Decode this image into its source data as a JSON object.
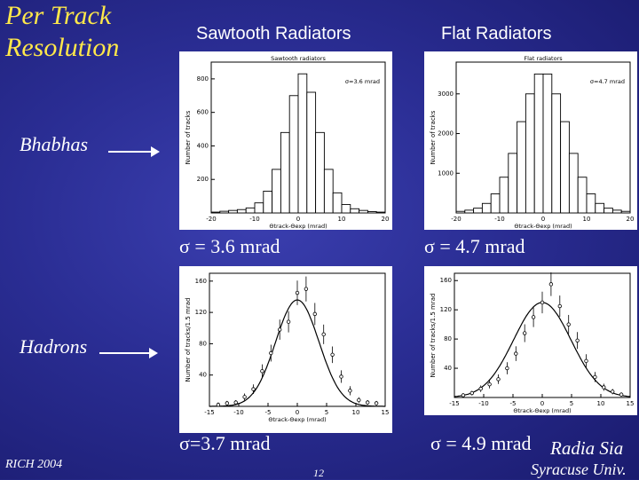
{
  "slide": {
    "title_line1": "Per Track",
    "title_line2": "Resolution",
    "col_sawtooth": "Sawtooth Radiators",
    "col_flat": "Flat Radiators",
    "row_bhabhas": "Bhabhas",
    "row_hadrons": "Hadrons",
    "sigma_saw_bhabha": "σ = 3.6 mrad",
    "sigma_flat_bhabha": "σ = 4.7 mrad",
    "sigma_saw_hadron": "σ=3.7 mrad",
    "sigma_flat_hadron": "σ = 4.9 mrad",
    "footer_left": "RICH 2004",
    "page_number": "12",
    "footer_right_1": "Radia Sia",
    "footer_right_2": "Syracuse Univ."
  },
  "chart_data": [
    {
      "type": "bar",
      "title": "Sawtooth radiators",
      "annotation": "σ=3.6 mrad",
      "xlabel": "Θtrack-Θexp (mrad)",
      "ylabel": "Number of tracks",
      "xlim": [
        -20,
        20
      ],
      "ylim": [
        0,
        900
      ],
      "x_ticks": [
        "-20",
        "-10",
        "0",
        "10",
        "20"
      ],
      "y_ticks": [
        "200",
        "400",
        "600",
        "800"
      ],
      "bin_edges": [
        -20,
        -18,
        -16,
        -14,
        -12,
        -10,
        -8,
        -6,
        -4,
        -2,
        0,
        2,
        4,
        6,
        8,
        10,
        12,
        14,
        16,
        18,
        20
      ],
      "values": [
        5,
        10,
        15,
        20,
        30,
        60,
        130,
        260,
        480,
        700,
        830,
        720,
        480,
        260,
        120,
        50,
        25,
        15,
        8,
        5
      ]
    },
    {
      "type": "bar",
      "title": "Flat radiators",
      "annotation": "σ=4.7 mrad",
      "xlabel": "Θtrack-Θexp (mrad)",
      "ylabel": "Number of tracks",
      "xlim": [
        -20,
        20
      ],
      "ylim": [
        0,
        3800
      ],
      "x_ticks": [
        "-20",
        "-10",
        "0",
        "10",
        "20"
      ],
      "y_ticks": [
        "1000",
        "2000",
        "3000"
      ],
      "bin_edges": [
        -20,
        -18,
        -16,
        -14,
        -12,
        -10,
        -8,
        -6,
        -4,
        -2,
        0,
        2,
        4,
        6,
        8,
        10,
        12,
        14,
        16,
        18,
        20
      ],
      "values": [
        40,
        70,
        120,
        240,
        480,
        900,
        1500,
        2300,
        3000,
        3500,
        3500,
        3000,
        2300,
        1500,
        900,
        480,
        240,
        120,
        70,
        40
      ]
    },
    {
      "type": "scatter",
      "title": "",
      "xlabel": "Θtrack-Θexp (mrad)",
      "ylabel": "Number of tracks/1.5 mrad",
      "xlim": [
        -15,
        15
      ],
      "ylim": [
        0,
        170
      ],
      "x_ticks": [
        "-15",
        "-10",
        "-5",
        "0",
        "5",
        "10",
        "15"
      ],
      "y_ticks": [
        "40",
        "80",
        "120",
        "160"
      ],
      "x": [
        -13.5,
        -12,
        -10.5,
        -9,
        -7.5,
        -6,
        -4.5,
        -3,
        -1.5,
        0,
        1.5,
        3,
        4.5,
        6,
        7.5,
        9,
        10.5,
        12,
        13.5
      ],
      "y": [
        2,
        4,
        5,
        12,
        22,
        45,
        68,
        98,
        108,
        145,
        150,
        118,
        92,
        66,
        38,
        20,
        8,
        5,
        4
      ],
      "fit_sigma": 3.7,
      "fit_peak": 136
    },
    {
      "type": "scatter",
      "title": "",
      "xlabel": "Θtrack-Θexp (mrad)",
      "ylabel": "Number of tracks/1.5 mrad",
      "xlim": [
        -15,
        15
      ],
      "ylim": [
        0,
        170
      ],
      "x_ticks": [
        "-15",
        "-10",
        "-5",
        "0",
        "5",
        "10",
        "15"
      ],
      "y_ticks": [
        "40",
        "80",
        "120",
        "160"
      ],
      "x": [
        -13.5,
        -12,
        -10.5,
        -9,
        -7.5,
        -6,
        -4.5,
        -3,
        -1.5,
        0,
        1.5,
        3,
        4.5,
        6,
        7.5,
        9,
        10.5,
        12,
        13.5
      ],
      "y": [
        3,
        6,
        12,
        18,
        25,
        40,
        60,
        88,
        110,
        130,
        155,
        125,
        100,
        78,
        50,
        28,
        14,
        8,
        4
      ],
      "fit_sigma": 4.9,
      "fit_peak": 130
    }
  ]
}
